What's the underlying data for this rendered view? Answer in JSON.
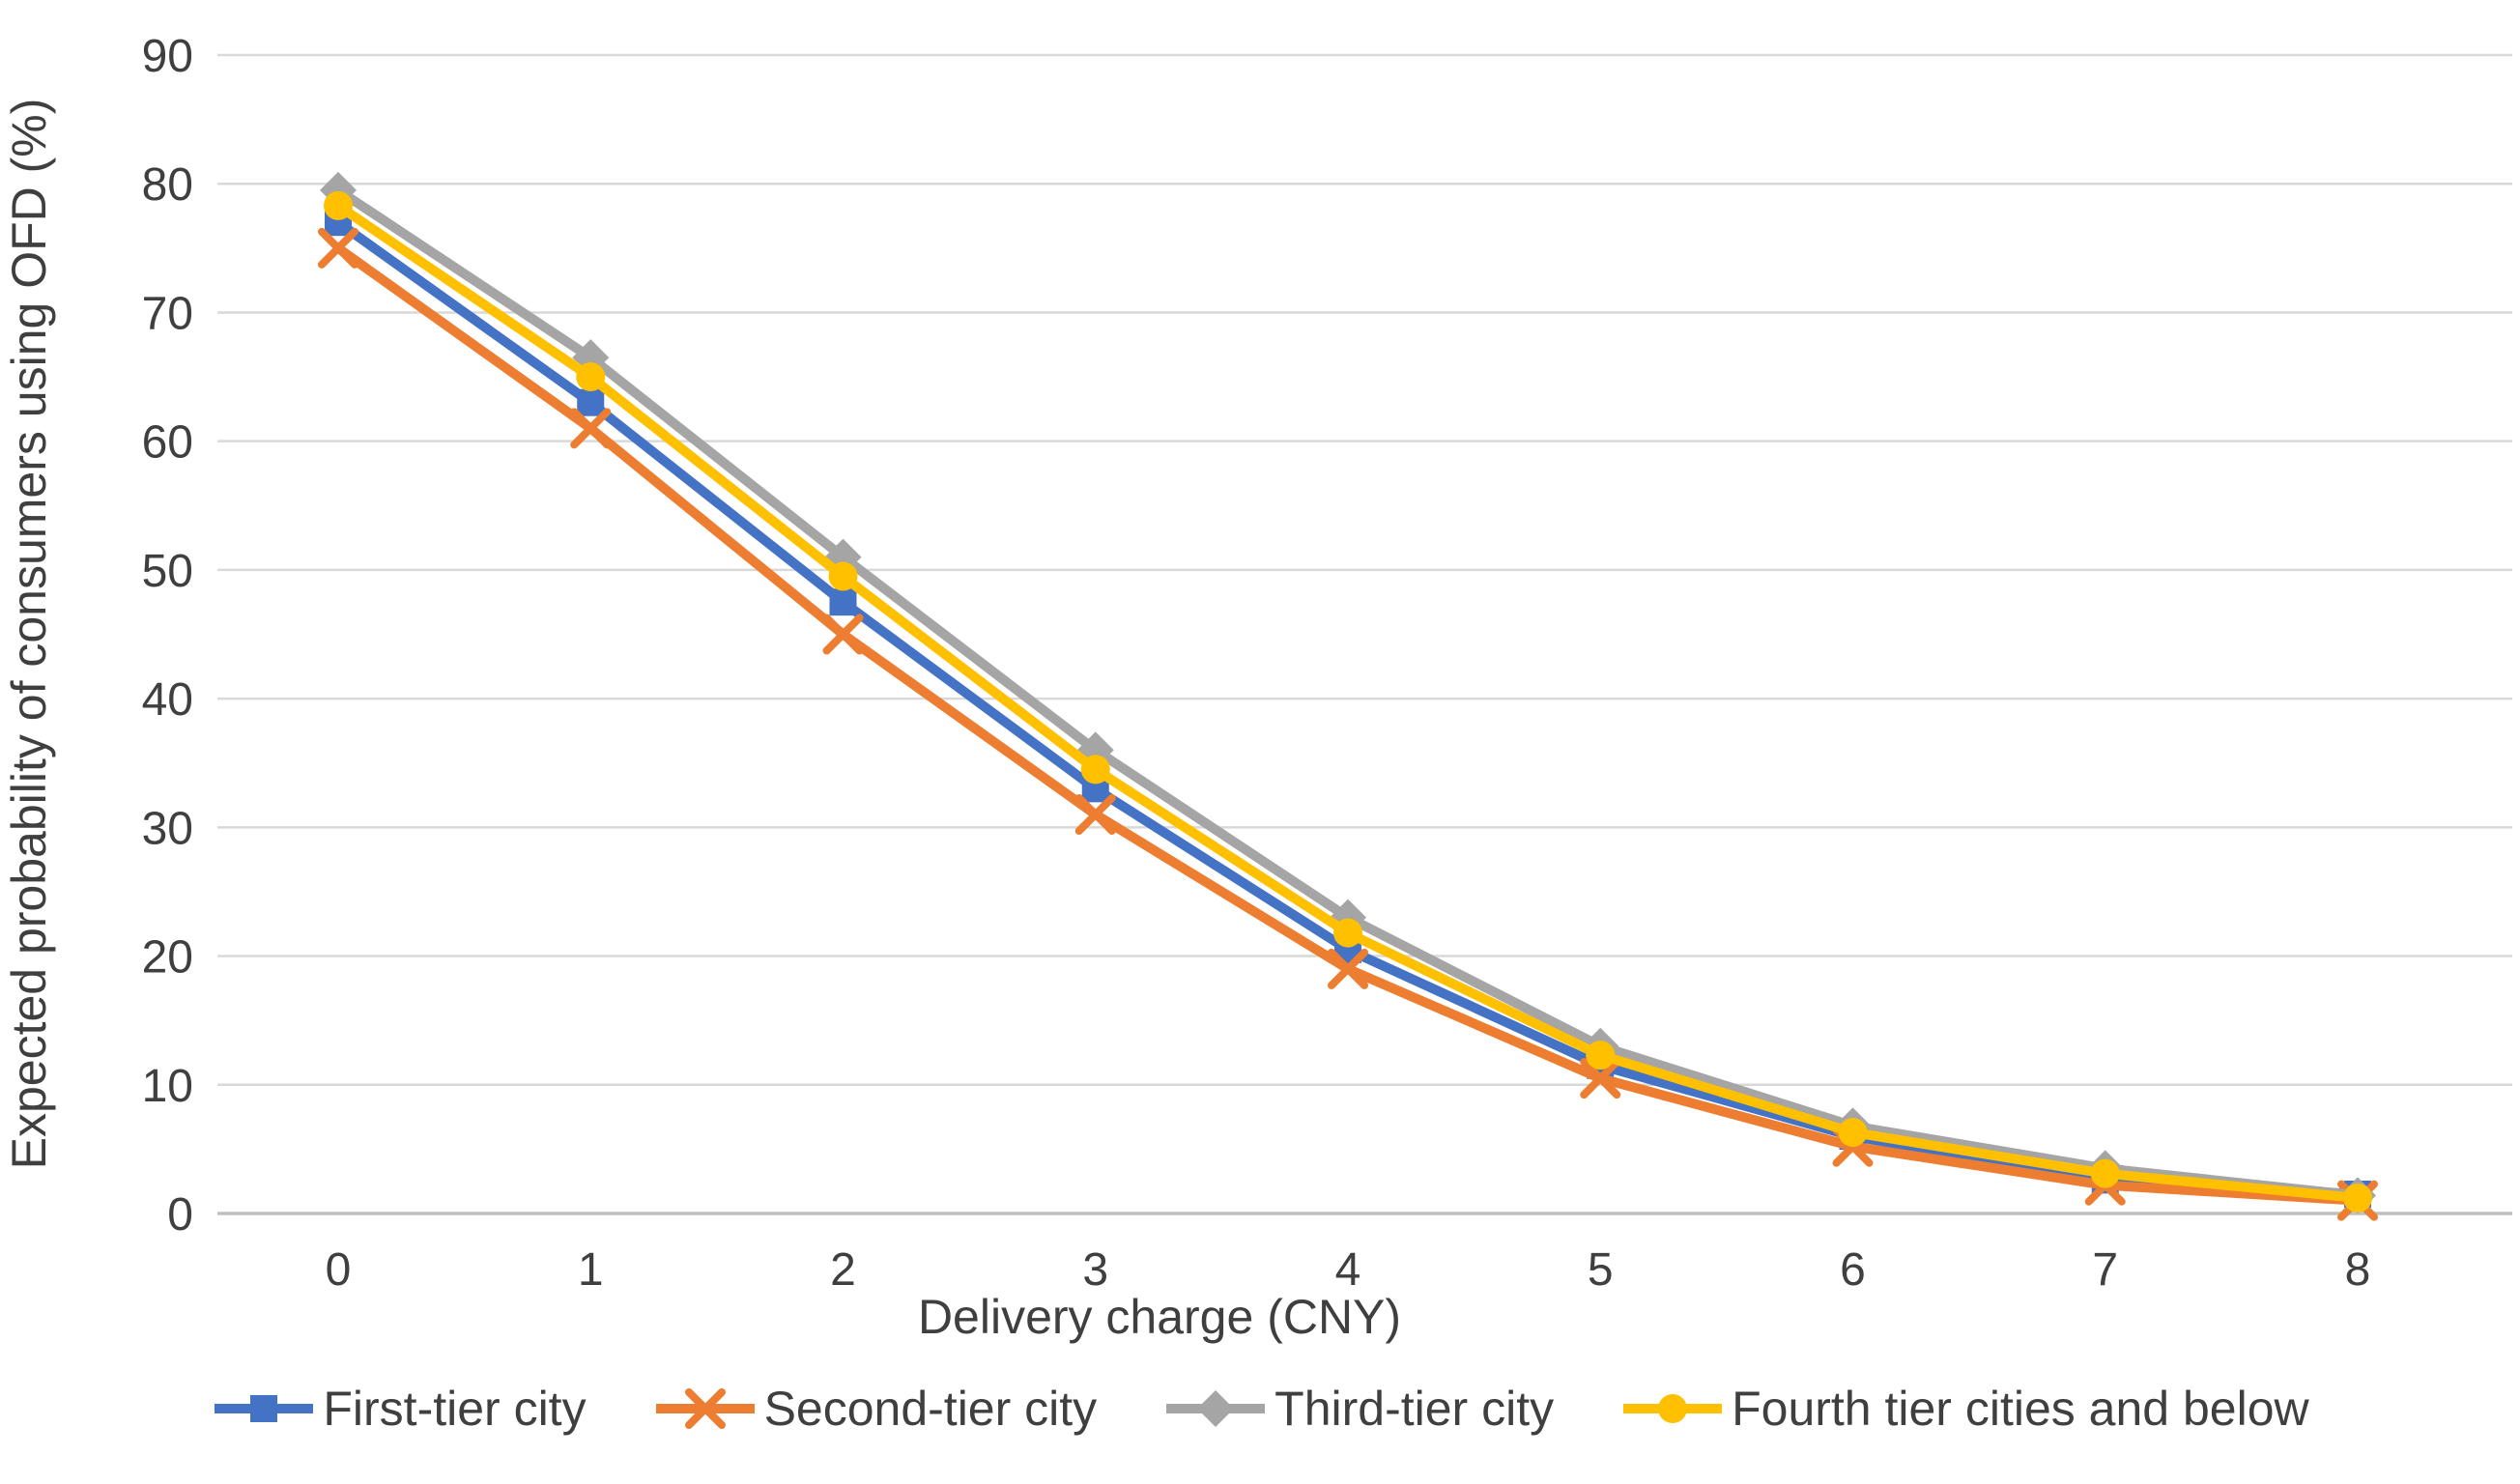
{
  "chart_data": {
    "type": "line",
    "title": "",
    "xlabel": "Delivery charge (CNY)",
    "ylabel": "Expected probability of consumers using OFD (%)",
    "categories": [
      0,
      1,
      2,
      3,
      4,
      5,
      6,
      7,
      8
    ],
    "ylim": [
      0,
      90
    ],
    "ytick_step": 10,
    "grid": "horizontal-only",
    "legend_position": "bottom",
    "series": [
      {
        "name": "First-tier city",
        "color": "#4472C4",
        "marker": "square",
        "values": [
          77,
          63,
          47.5,
          33,
          20.5,
          11.5,
          6,
          2.6,
          1.5
        ]
      },
      {
        "name": "Second-tier city",
        "color": "#ED7D31",
        "marker": "x",
        "values": [
          75,
          61,
          45,
          31,
          19,
          10.5,
          5.2,
          2.2,
          1
        ]
      },
      {
        "name": "Third-tier city",
        "color": "#A5A5A5",
        "marker": "diamond",
        "values": [
          79.5,
          66.5,
          51,
          36,
          23,
          13,
          6.8,
          3.5,
          1.4
        ]
      },
      {
        "name": "Fourth tier cities and below",
        "color": "#FFC000",
        "marker": "circle",
        "values": [
          78.3,
          65,
          49.5,
          34.5,
          21.8,
          12.3,
          6.3,
          3.1,
          1.2
        ]
      }
    ]
  },
  "style_colors": {
    "gridline": "#D9D9D9",
    "axis_line": "#BFBFBF",
    "text": "#3F3F3F"
  }
}
